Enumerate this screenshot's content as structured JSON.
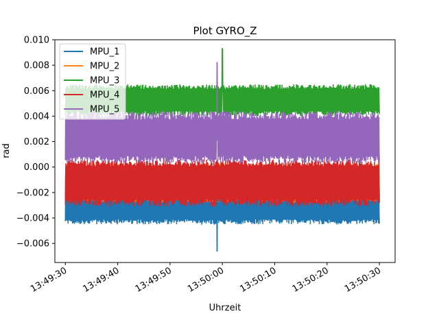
{
  "chart_data": {
    "type": "line",
    "title": "Plot GYRO_Z",
    "xlabel": "Uhrzeit",
    "ylabel": "rad",
    "xlim": [
      "13:49:28",
      "13:50:33"
    ],
    "ylim": [
      -0.0075,
      0.01
    ],
    "x_ticks": [
      "13:49:30",
      "13:49:40",
      "13:49:50",
      "13:50:00",
      "13:50:10",
      "13:50:20",
      "13:50:30"
    ],
    "y_ticks": [
      -0.006,
      -0.004,
      -0.002,
      0.0,
      0.002,
      0.004,
      0.006,
      0.008,
      0.01
    ],
    "y_tick_labels": [
      "−0.006",
      "−0.004",
      "−0.002",
      "0.000",
      "0.002",
      "0.004",
      "0.006",
      "0.008",
      "0.010"
    ],
    "grid": false,
    "legend_position": "upper-left",
    "x_range": [
      "13:49:30",
      "13:50:30"
    ],
    "series": [
      {
        "name": "MPU_1",
        "color": "#1f77b4",
        "mean": -0.0032,
        "low": -0.0045,
        "high": -0.0023,
        "min": -0.0066,
        "min_at": "13:49:59"
      },
      {
        "name": "MPU_2",
        "color": "#ff7f0e",
        "mean": -0.0012,
        "low": -0.0028,
        "high": 0.0003
      },
      {
        "name": "MPU_3",
        "color": "#2ca02c",
        "mean": 0.0053,
        "low": 0.004,
        "high": 0.0065,
        "max": 0.0093,
        "max_at": "13:50:00"
      },
      {
        "name": "MPU_4",
        "color": "#d62728",
        "mean": -0.0012,
        "low": -0.0031,
        "high": 0.0006
      },
      {
        "name": "MPU_5",
        "color": "#9467bd",
        "mean": 0.0022,
        "low": 0.0003,
        "high": 0.0044,
        "max": 0.0082,
        "max_at": "13:49:59"
      }
    ]
  }
}
